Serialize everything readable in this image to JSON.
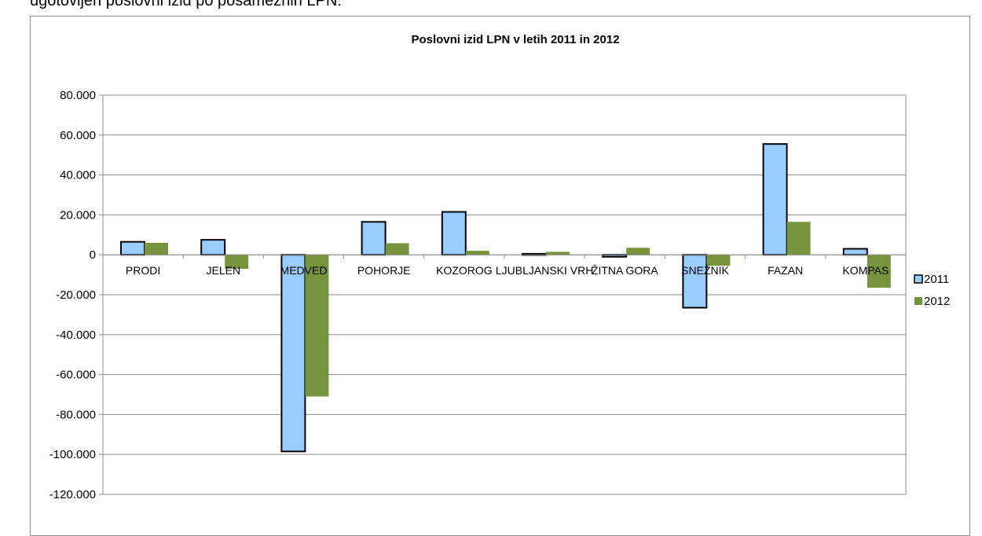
{
  "page": {
    "top_text": "ugotovljen poslovni izid po posameznih LPN:"
  },
  "chart_data": {
    "type": "bar",
    "title": "Poslovni izid LPN v letih 2011 in 2012",
    "xlabel": "",
    "ylabel": "",
    "categories": [
      "PRODI",
      "JELEN",
      "MEDVED",
      "POHORJE",
      "KOZOROG",
      "LJUBLJANSKI VRH",
      "ŽITNA GORA",
      "SNEŽNIK",
      "FAZAN",
      "KOMPAS"
    ],
    "series": [
      {
        "name": "2011",
        "color": "#99ccff",
        "values": [
          6500,
          7500,
          -98500,
          16500,
          21500,
          500,
          -1000,
          -26500,
          55500,
          3000
        ]
      },
      {
        "name": "2012",
        "color": "#77933c",
        "values": [
          6000,
          -7000,
          -71000,
          5800,
          2000,
          1500,
          3500,
          -5500,
          16500,
          -16500
        ]
      }
    ],
    "ylim": [
      -120000,
      80000
    ],
    "yticks": [
      "80.000",
      "60.000",
      "40.000",
      "20.000",
      "0",
      "-20.000",
      "-40.000",
      "-60.000",
      "-80.000",
      "-100.000",
      "-120.000"
    ],
    "ytick_values": [
      80000,
      60000,
      40000,
      20000,
      0,
      -20000,
      -40000,
      -60000,
      -80000,
      -100000,
      -120000
    ],
    "grid": true,
    "legend_position": "right"
  }
}
